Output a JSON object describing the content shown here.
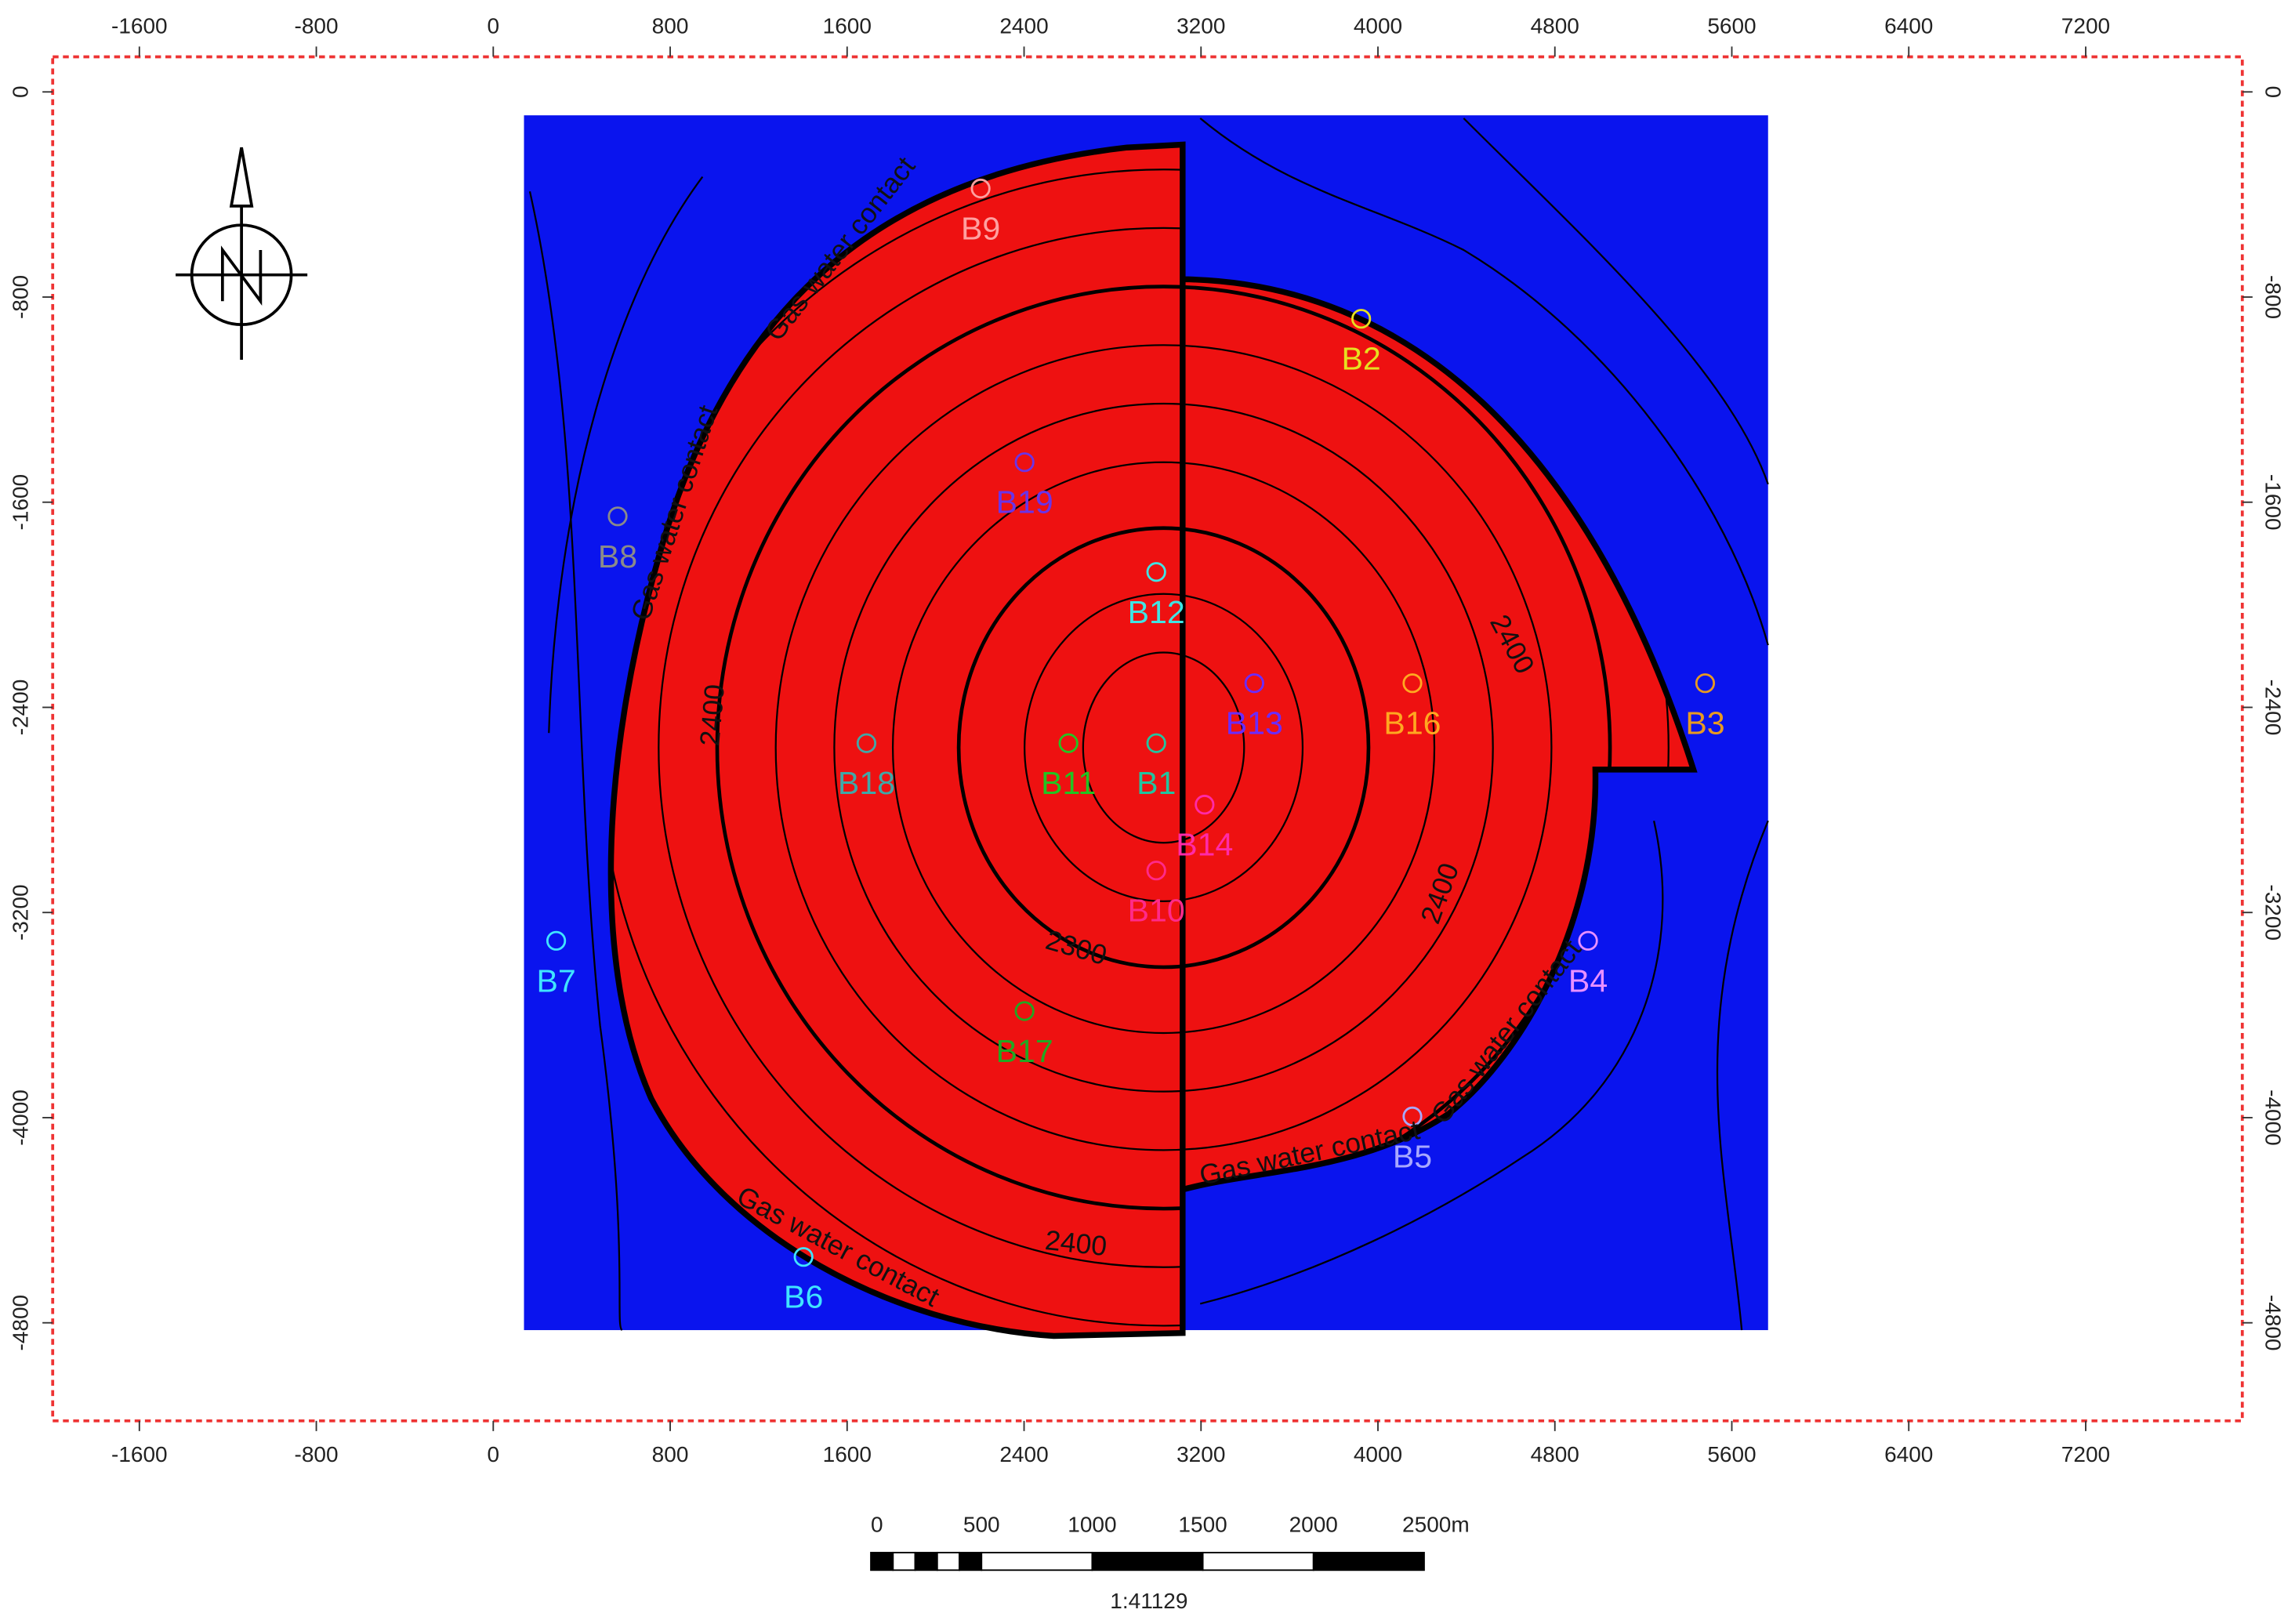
{
  "axes": {
    "x_ticks": [
      -1600,
      -800,
      0,
      800,
      1600,
      2400,
      3200,
      4000,
      4800,
      5600,
      6400,
      7200
    ],
    "y_ticks": [
      0,
      -800,
      -1600,
      -2400,
      -3200,
      -4000,
      -4800
    ]
  },
  "wells": [
    {
      "name": "B1",
      "color": "#22c4a0"
    },
    {
      "name": "B2",
      "color": "#e6e020"
    },
    {
      "name": "B3",
      "color": "#e89a20"
    },
    {
      "name": "B4",
      "color": "#e890ff"
    },
    {
      "name": "B5",
      "color": "#a8a8ff"
    },
    {
      "name": "B6",
      "color": "#40e4ff"
    },
    {
      "name": "B7",
      "color": "#40e4ff"
    },
    {
      "name": "B8",
      "color": "#8a8a8a"
    },
    {
      "name": "B9",
      "color": "#ffa0a0"
    },
    {
      "name": "B10",
      "color": "#ff2a8a"
    },
    {
      "name": "B11",
      "color": "#22c422"
    },
    {
      "name": "B12",
      "color": "#40e4e4"
    },
    {
      "name": "B13",
      "color": "#6a2cff"
    },
    {
      "name": "B14",
      "color": "#ff2aa8"
    },
    {
      "name": "B16",
      "color": "#ffa820"
    },
    {
      "name": "B17",
      "color": "#22a822"
    },
    {
      "name": "B18",
      "color": "#40a8a8"
    },
    {
      "name": "B19",
      "color": "#6a34e8"
    }
  ],
  "contour_labels": [
    "Gas water contact",
    "Gas water contact",
    "Gas water contact",
    "Gas water contact",
    "Gas water contact",
    2400,
    2400,
    2400,
    2400,
    2300
  ],
  "scale_bar": {
    "labels": [
      0,
      500,
      1000,
      1500,
      2000,
      "2500m"
    ],
    "ratio": "1:41129"
  }
}
